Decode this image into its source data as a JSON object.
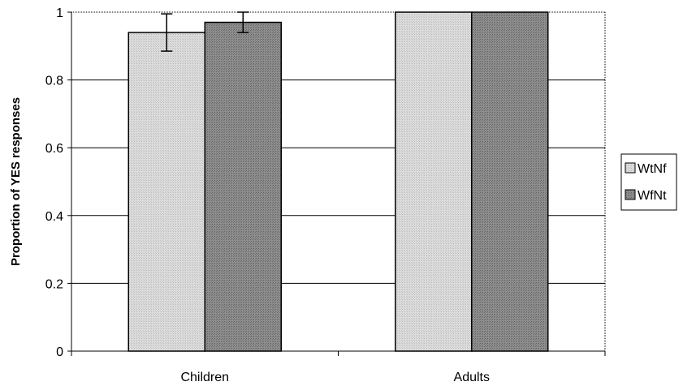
{
  "chart_data": {
    "type": "bar",
    "title": "",
    "xlabel": "",
    "ylabel": "Proportion of YES responses",
    "ylim": [
      0,
      1
    ],
    "yticks": [
      "0",
      "0.2",
      "0.4",
      "0.6",
      "0.8",
      "1"
    ],
    "categories": [
      "Children",
      "Adults"
    ],
    "series": [
      {
        "name": "WtNf",
        "values": [
          0.94,
          1.0
        ],
        "error": [
          0.055,
          0
        ],
        "color": "#d9d9d9"
      },
      {
        "name": "WfNt",
        "values": [
          0.97,
          1.0
        ],
        "error": [
          0.03,
          0
        ],
        "color": "#8c8c8c"
      }
    ],
    "grid": true,
    "legend": "right"
  }
}
